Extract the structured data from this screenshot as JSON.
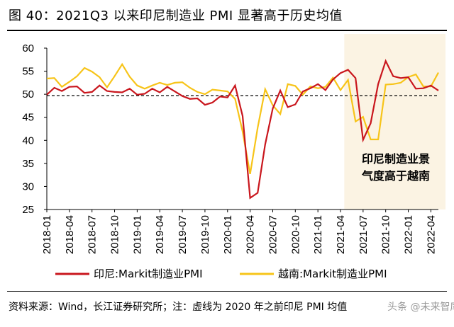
{
  "title": "图 40：2021Q3 以来印尼制造业 PMI 显著高于历史均值",
  "source": "资料来源：Wind，长江证券研究所；注：虚线为 2020 年之前印尼 PMI 均值",
  "watermark": "头条 @未来智库",
  "colors": {
    "indonesia": "#c9161d",
    "vietnam": "#f7c419",
    "highlight": "#fbf3e3",
    "baseline": "#000000"
  },
  "chart_data": {
    "type": "line",
    "ylim": [
      25,
      60
    ],
    "yticks": [
      25,
      30,
      35,
      40,
      45,
      50,
      55,
      60
    ],
    "xtick_labels": [
      "2018-01",
      "2018-04",
      "2018-07",
      "2018-10",
      "2019-01",
      "2019-04",
      "2019-07",
      "2019-10",
      "2020-01",
      "2020-04",
      "2020-07",
      "2020-10",
      "2021-01",
      "2021-04",
      "2021-07",
      "2021-10",
      "2022-01",
      "2022-04"
    ],
    "x": [
      "2018-01",
      "2018-02",
      "2018-03",
      "2018-04",
      "2018-05",
      "2018-06",
      "2018-07",
      "2018-08",
      "2018-09",
      "2018-10",
      "2018-11",
      "2018-12",
      "2019-01",
      "2019-02",
      "2019-03",
      "2019-04",
      "2019-05",
      "2019-06",
      "2019-07",
      "2019-08",
      "2019-09",
      "2019-10",
      "2019-11",
      "2019-12",
      "2020-01",
      "2020-02",
      "2020-03",
      "2020-04",
      "2020-05",
      "2020-06",
      "2020-07",
      "2020-08",
      "2020-09",
      "2020-10",
      "2020-11",
      "2020-12",
      "2021-01",
      "2021-02",
      "2021-03",
      "2021-04",
      "2021-05",
      "2021-06",
      "2021-07",
      "2021-08",
      "2021-09",
      "2021-10",
      "2021-11",
      "2021-12",
      "2022-01",
      "2022-02",
      "2022-03",
      "2022-04",
      "2022-05"
    ],
    "series": [
      {
        "name": "印尼:Markit制造业PMI",
        "values": [
          49.9,
          51.4,
          50.7,
          51.6,
          51.7,
          50.3,
          50.5,
          51.9,
          50.7,
          50.5,
          50.4,
          51.2,
          49.9,
          50.1,
          51.2,
          50.4,
          51.6,
          50.6,
          49.6,
          49.0,
          49.1,
          47.7,
          48.2,
          49.5,
          49.3,
          51.9,
          45.3,
          27.5,
          28.6,
          39.1,
          46.9,
          50.8,
          47.2,
          47.8,
          50.6,
          51.3,
          52.2,
          50.9,
          53.2,
          54.6,
          55.3,
          53.5,
          40.1,
          43.7,
          52.2,
          57.2,
          53.9,
          53.5,
          53.7,
          51.2,
          51.3,
          51.9,
          50.8
        ]
      },
      {
        "name": "越南:Markit制造业PMI",
        "values": [
          53.4,
          53.5,
          51.6,
          52.7,
          53.9,
          55.7,
          54.9,
          53.7,
          51.5,
          53.9,
          56.5,
          53.8,
          51.9,
          51.2,
          51.9,
          52.5,
          52.0,
          52.5,
          52.6,
          51.4,
          50.5,
          50.0,
          51.0,
          50.8,
          50.6,
          49.0,
          41.9,
          32.7,
          42.7,
          51.1,
          47.6,
          45.7,
          52.2,
          51.8,
          49.9,
          51.7,
          51.3,
          51.6,
          53.6,
          50.9,
          53.1,
          44.1,
          45.1,
          40.2,
          40.2,
          52.1,
          52.2,
          52.5,
          53.7,
          54.3,
          51.7,
          51.7,
          54.7
        ]
      }
    ],
    "baseline": 49.7,
    "highlight_from": "2021-04",
    "annotation": [
      "印尼制造业景",
      "气度高于越南"
    ]
  }
}
